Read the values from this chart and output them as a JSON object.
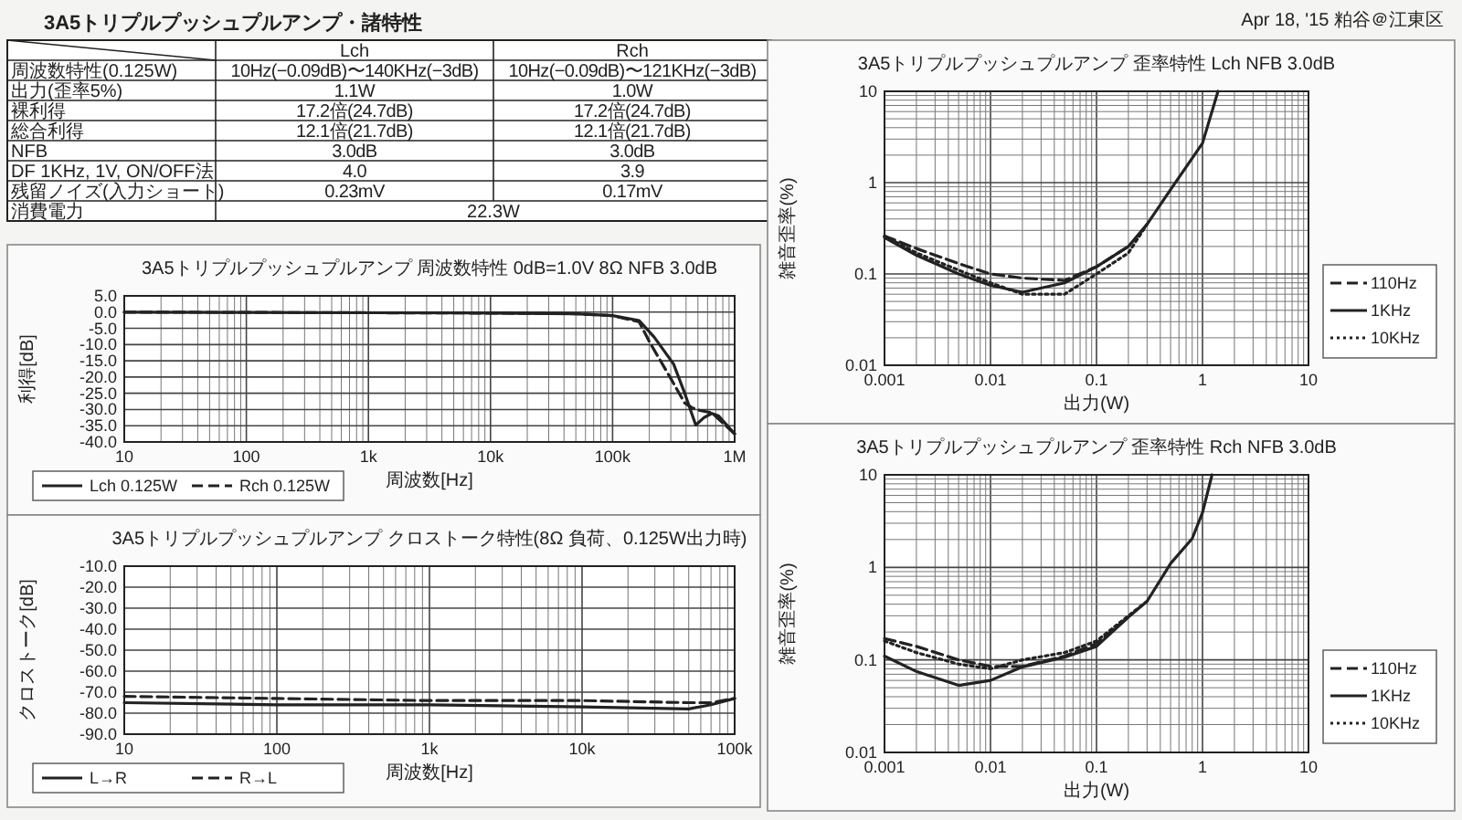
{
  "chart_data": [
    {
      "type": "other",
      "title": "3A5トリプルプッシュプルアンプ・諸特性",
      "annotations": [
        "Apr 18, '15 粕谷＠江東区"
      ],
      "categories": [
        "Lch",
        "Rch"
      ],
      "y_categories": [
        "周波数特性(0.125W)",
        "出力(歪率5%)",
        "裸利得",
        "総合利得",
        "NFB",
        "DF 1KHz, 1V, ON/OFF法",
        "残留ノイズ(入力ショート)",
        "消費電力"
      ],
      "cell_labels": [
        [
          "10Hz(−0.09dB)〜140KHz(−3dB)",
          "10Hz(−0.09dB)〜121KHz(−3dB)"
        ],
        [
          "1.1W",
          "1.0W"
        ],
        [
          "17.2倍(24.7dB)",
          "17.2倍(24.7dB)"
        ],
        [
          "12.1倍(21.7dB)",
          "12.1倍(21.7dB)"
        ],
        [
          "3.0dB",
          "3.0dB"
        ],
        [
          "4.0",
          "3.9"
        ],
        [
          "0.23mV",
          "0.17mV"
        ],
        [
          "22.3W",
          null
        ]
      ]
    },
    {
      "type": "line",
      "title": "3A5トリプルプッシュプルアンプ 周波数特性 0dB=1.0V 8Ω  NFB 3.0dB",
      "xlabel": "周波数[Hz]",
      "ylabel": "利得[dB]",
      "log": "x",
      "grid": true,
      "legend": "bottom left",
      "xlim": [
        10,
        1000000
      ],
      "xticks": [
        10,
        100,
        {
          "value": 1000,
          "label": "1k"
        },
        {
          "value": 10000,
          "label": "10k"
        },
        {
          "value": 100000,
          "label": "100k"
        },
        {
          "value": 1000000,
          "label": "1M"
        }
      ],
      "ylim": [
        -40,
        5
      ],
      "yticks": [
        {
          "value": -40,
          "label": "-40.0"
        },
        {
          "value": -35,
          "label": "-35.0"
        },
        {
          "value": -30,
          "label": "-30.0"
        },
        {
          "value": -25,
          "label": "-25.0"
        },
        {
          "value": -20,
          "label": "-20.0"
        },
        {
          "value": -15,
          "label": "-15.0"
        },
        {
          "value": -10,
          "label": "-10.0"
        },
        {
          "value": -5,
          "label": "-5.0"
        },
        {
          "value": 0,
          "label": "0.0"
        },
        {
          "value": 5,
          "label": "5.0"
        }
      ],
      "series": [
        {
          "name": "Lch 0.125W",
          "color": "#222222",
          "line_style": "solid",
          "x": [
            10,
            100,
            1000,
            10000,
            50000,
            100000,
            165000,
            219000,
            316000,
            390000,
            480000,
            560000,
            650000,
            740000,
            1000000
          ],
          "values": [
            0,
            -0.1,
            -0.2,
            -0.3,
            -0.5,
            -1.1,
            -2.6,
            -7.7,
            -16,
            -25,
            -34.8,
            -32.5,
            -31.2,
            -32,
            -37.5
          ]
        },
        {
          "name": "Rch 0.125W",
          "color": "#222222",
          "line_style": "dashed",
          "x": [
            10,
            100,
            1000,
            10000,
            50000,
            100000,
            165000,
            200000,
            295000,
            390000,
            450000,
            520000,
            650000,
            1000000
          ],
          "values": [
            0,
            -0.1,
            -0.2,
            -0.3,
            -0.5,
            -1.1,
            -3,
            -9.1,
            -20,
            -28,
            -29.5,
            -30.3,
            -31,
            -37.5
          ]
        }
      ]
    },
    {
      "type": "line",
      "title": "3A5トリプルプッシュプルアンプ クロストーク特性(8Ω 負荷、0.125W出力時)",
      "xlabel": "周波数[Hz]",
      "ylabel": "クロストーク[dB]",
      "log": "x",
      "grid": true,
      "legend": "bottom left",
      "xlim": [
        10,
        100000
      ],
      "xticks": [
        10,
        100,
        {
          "value": 1000,
          "label": "1k"
        },
        {
          "value": 10000,
          "label": "10k"
        },
        {
          "value": 100000,
          "label": "100k"
        }
      ],
      "ylim": [
        -90,
        -10
      ],
      "yticks": [
        {
          "value": -90,
          "label": "-90.0"
        },
        {
          "value": -80,
          "label": "-80.0"
        },
        {
          "value": -70,
          "label": "-70.0"
        },
        {
          "value": -60,
          "label": "-60.0"
        },
        {
          "value": -50,
          "label": "-50.0"
        },
        {
          "value": -40,
          "label": "-40.0"
        },
        {
          "value": -30,
          "label": "-30.0"
        },
        {
          "value": -20,
          "label": "-20.0"
        },
        {
          "value": -10,
          "label": "-10.0"
        }
      ],
      "series": [
        {
          "name": "L→R",
          "color": "#222222",
          "line_style": "solid",
          "x": [
            10,
            100,
            1000,
            10000,
            50000,
            70000,
            100000
          ],
          "values": [
            -75,
            -76,
            -76,
            -77,
            -78,
            -76,
            -73
          ]
        },
        {
          "name": "R→L",
          "color": "#222222",
          "line_style": "dashed",
          "x": [
            10,
            100,
            1000,
            10000,
            50000,
            70000,
            100000
          ],
          "values": [
            -72,
            -73,
            -74,
            -74,
            -75,
            -75,
            -73
          ]
        }
      ]
    },
    {
      "type": "line",
      "title": "3A5トリプルプッシュプルアンプ 歪率特性 Lch NFB 3.0dB",
      "xlabel": "出力(W)",
      "ylabel": "雑音歪率(%)",
      "log": "xy",
      "grid": true,
      "legend": "right",
      "xlim": [
        0.001,
        10
      ],
      "xticks": [
        0.001,
        0.01,
        0.1,
        1,
        10
      ],
      "ylim": [
        0.01,
        10
      ],
      "yticks": [
        0.01,
        0.1,
        1,
        10
      ],
      "series": [
        {
          "name": "110Hz",
          "color": "#222222",
          "line_style": "dashed",
          "x": [
            0.001,
            0.002,
            0.005,
            0.01,
            0.02,
            0.05,
            0.1,
            0.2
          ],
          "values": [
            0.26,
            0.19,
            0.13,
            0.1,
            0.09,
            0.085,
            0.12,
            0.2
          ]
        },
        {
          "name": "1KHz",
          "color": "#222222",
          "line_style": "solid",
          "x": [
            0.001,
            0.002,
            0.005,
            0.01,
            0.02,
            0.05,
            0.1,
            0.2,
            0.3,
            0.5,
            1,
            1.4
          ],
          "values": [
            0.25,
            0.16,
            0.1,
            0.075,
            0.063,
            0.08,
            0.12,
            0.2,
            0.35,
            0.84,
            2.7,
            10
          ]
        },
        {
          "name": "10KHz",
          "color": "#222222",
          "line_style": "dotted",
          "x": [
            0.001,
            0.002,
            0.005,
            0.01,
            0.02,
            0.05,
            0.1,
            0.2,
            0.3
          ],
          "values": [
            0.26,
            0.17,
            0.11,
            0.08,
            0.06,
            0.06,
            0.1,
            0.17,
            0.35
          ]
        }
      ]
    },
    {
      "type": "line",
      "title": "3A5トリプルプッシュプルアンプ 歪率特性 Rch NFB 3.0dB",
      "xlabel": "出力(W)",
      "ylabel": "雑音歪率(%)",
      "log": "xy",
      "grid": true,
      "legend": "right",
      "xlim": [
        0.001,
        10
      ],
      "xticks": [
        0.001,
        0.01,
        0.1,
        1,
        10
      ],
      "ylim": [
        0.01,
        10
      ],
      "yticks": [
        0.01,
        0.1,
        1,
        10
      ],
      "series": [
        {
          "name": "110Hz",
          "color": "#222222",
          "line_style": "dashed",
          "x": [
            0.001,
            0.002,
            0.005,
            0.01,
            0.02,
            0.05,
            0.1,
            0.2
          ],
          "values": [
            0.17,
            0.14,
            0.1,
            0.085,
            0.085,
            0.11,
            0.15,
            0.29
          ]
        },
        {
          "name": "1KHz",
          "color": "#222222",
          "line_style": "solid",
          "x": [
            0.001,
            0.002,
            0.005,
            0.01,
            0.02,
            0.05,
            0.1,
            0.2,
            0.3,
            0.5,
            0.8,
            1,
            1.23
          ],
          "values": [
            0.11,
            0.075,
            0.053,
            0.06,
            0.084,
            0.107,
            0.14,
            0.29,
            0.43,
            1.1,
            2.05,
            3.9,
            10
          ]
        },
        {
          "name": "10KHz",
          "color": "#222222",
          "line_style": "dotted",
          "x": [
            0.001,
            0.002,
            0.005,
            0.01,
            0.02,
            0.05,
            0.1,
            0.2,
            0.3
          ],
          "values": [
            0.16,
            0.12,
            0.09,
            0.08,
            0.1,
            0.12,
            0.16,
            0.3,
            0.43
          ]
        }
      ]
    }
  ]
}
